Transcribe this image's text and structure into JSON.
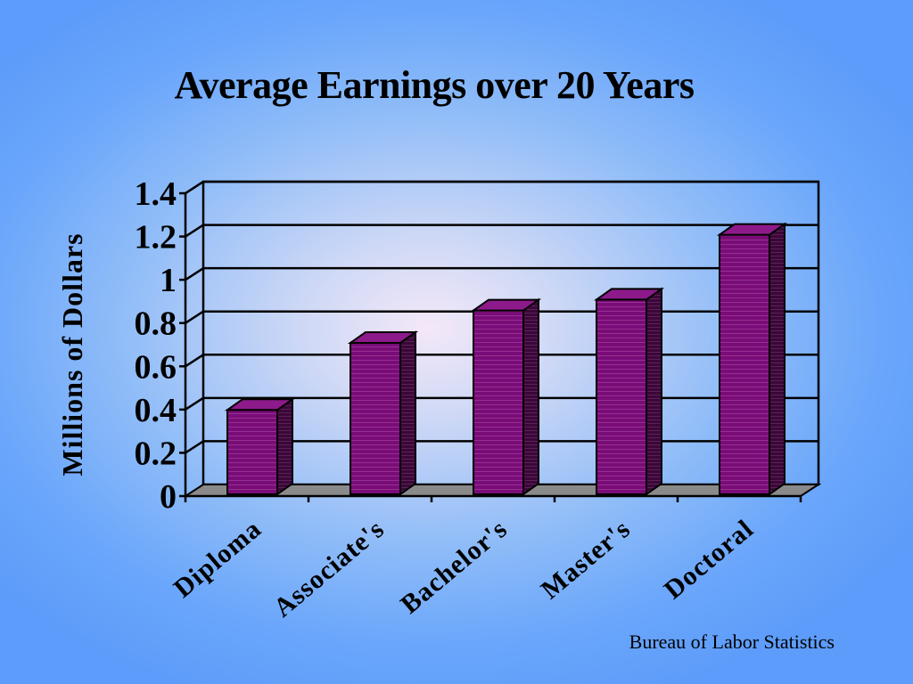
{
  "slide": {
    "title": "Average Earnings over 20 Years",
    "source": "Bureau of Labor Statistics"
  },
  "colors": {
    "bar_front": "#7a0c78",
    "bar_top": "#8d1a8a",
    "bar_side": "#3a0838",
    "floor": "#8a8a8a",
    "gridline": "#000000"
  },
  "chart_data": {
    "type": "bar",
    "style": "3d-column",
    "title": "Average Earnings over 20 Years",
    "xlabel": "",
    "ylabel": "Millions of Dollars",
    "categories": [
      "Diploma",
      "Associate's",
      "Bachelor's",
      "Master's",
      "Doctoral"
    ],
    "values": [
      0.39,
      0.7,
      0.85,
      0.9,
      1.2
    ],
    "ylim": [
      0,
      1.4
    ],
    "yticks": [
      "0",
      "0.2",
      "0.4",
      "0.6",
      "0.8",
      "1",
      "1.2",
      "1.4"
    ],
    "grid": true,
    "legend": "none"
  }
}
